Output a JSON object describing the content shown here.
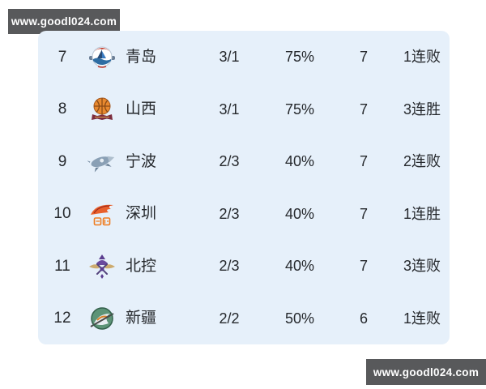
{
  "watermarks": {
    "top_left": "www.goodl024.com",
    "bottom_right": "www.goodl024.com",
    "bar_color": "#58595b"
  },
  "standings": {
    "panel_color": "#e6f0fa",
    "text_color": "#25282c",
    "rows": [
      {
        "rank": "7",
        "team": "青岛",
        "logo": "qingdao-team-logo",
        "record": "3/1",
        "win_pct": "75%",
        "games": "7",
        "streak": "1连败"
      },
      {
        "rank": "8",
        "team": "山西",
        "logo": "shanxi-team-logo",
        "record": "3/1",
        "win_pct": "75%",
        "games": "7",
        "streak": "3连胜"
      },
      {
        "rank": "9",
        "team": "宁波",
        "logo": "ningbo-team-logo",
        "record": "2/3",
        "win_pct": "40%",
        "games": "7",
        "streak": "2连败"
      },
      {
        "rank": "10",
        "team": "深圳",
        "logo": "shenzhen-team-logo",
        "record": "2/3",
        "win_pct": "40%",
        "games": "7",
        "streak": "1连胜"
      },
      {
        "rank": "11",
        "team": "北控",
        "logo": "beikong-team-logo",
        "record": "2/3",
        "win_pct": "40%",
        "games": "7",
        "streak": "3连败"
      },
      {
        "rank": "12",
        "team": "新疆",
        "logo": "xinjiang-team-logo",
        "record": "2/2",
        "win_pct": "50%",
        "games": "6",
        "streak": "1连败"
      }
    ]
  }
}
